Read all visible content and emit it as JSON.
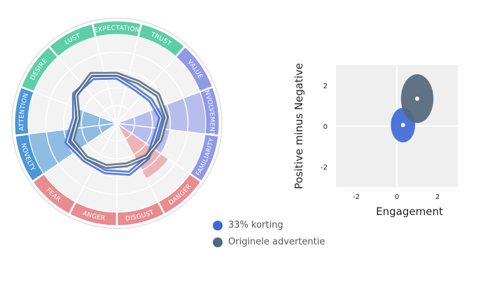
{
  "chart_data": [
    {
      "type": "radar",
      "segments": [
        {
          "name": "EXPECTATION",
          "color": "#5ccfa7"
        },
        {
          "name": "TRUST",
          "color": "#5ccfa7"
        },
        {
          "name": "VALUE",
          "color": "#8f99e8"
        },
        {
          "name": "INVOLVEMENT",
          "color": "#8f99e8"
        },
        {
          "name": "FAMILIARITY",
          "color": "#8f99e8"
        },
        {
          "name": "DANGER",
          "color": "#e98b8f"
        },
        {
          "name": "DISGUST",
          "color": "#e98b8f"
        },
        {
          "name": "ANGER",
          "color": "#e98b8f"
        },
        {
          "name": "FEAR",
          "color": "#e98b8f"
        },
        {
          "name": "NOVELTY",
          "color": "#4b97d9"
        },
        {
          "name": "ATTENTION",
          "color": "#4b97d9"
        },
        {
          "name": "DESIRE",
          "color": "#5ccfa7"
        },
        {
          "name": "LUST",
          "color": "#5ccfa7"
        }
      ],
      "highlights": [
        {
          "segment": "INVOLVEMENT",
          "value": 1.0,
          "color": "#8f99e8"
        },
        {
          "segment": "FAMILIARITY",
          "value": 0.6,
          "color": "#8f99e8"
        },
        {
          "segment": "DANGER",
          "value": 0.7,
          "color": "#e98b8f"
        },
        {
          "segment": "NOVELTY",
          "value": 1.0,
          "color": "#4b97d9"
        },
        {
          "segment": "ATTENTION",
          "value": 0.45,
          "color": "#4b97d9"
        }
      ],
      "rings": 5,
      "series": [
        {
          "name": "33% korting",
          "color": "#3f69d6",
          "values": [
            0.52,
            0.44,
            0.46,
            0.5,
            0.46,
            0.52,
            0.58,
            0.56,
            0.55,
            0.6,
            0.48,
            0.58,
            0.58
          ]
        },
        {
          "name": "Originele advertentie",
          "color": "#52687c",
          "values": [
            0.55,
            0.52,
            0.56,
            0.56,
            0.52,
            0.5,
            0.48,
            0.5,
            0.52,
            0.54,
            0.44,
            0.56,
            0.62
          ]
        }
      ]
    },
    {
      "type": "scatter",
      "xlabel": "Engagement",
      "ylabel": "Positive minus Negative",
      "xlim": [
        -3,
        3
      ],
      "ylim": [
        -3,
        3
      ],
      "xticks": [
        -2,
        0,
        2
      ],
      "yticks": [
        -2,
        0,
        2
      ],
      "points": [
        {
          "series": "33% korting",
          "x": 0.3,
          "y": 0.05,
          "sx": 0.6,
          "sy": 0.85,
          "color": "#3f69d6"
        },
        {
          "series": "Originele advertentie",
          "x": 1.0,
          "y": 1.35,
          "sx": 0.8,
          "sy": 1.2,
          "color": "#52687c"
        }
      ]
    }
  ],
  "legend": [
    {
      "label": "33% korting",
      "color": "#3f69d6"
    },
    {
      "label": "Originele advertentie",
      "color": "#52687c"
    }
  ]
}
